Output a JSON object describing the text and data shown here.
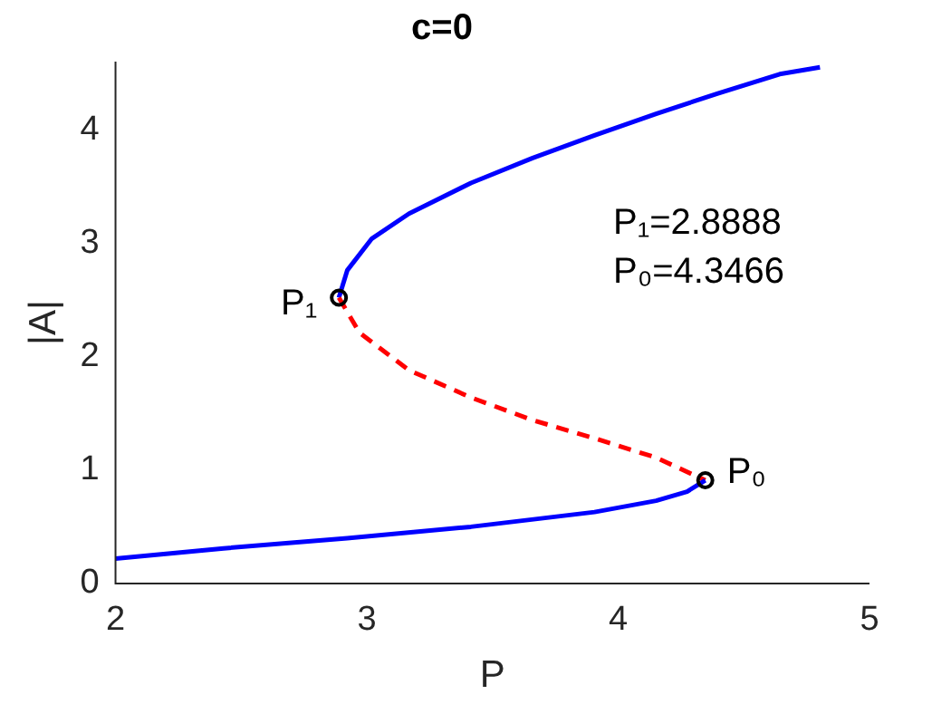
{
  "chart_data": {
    "type": "line",
    "title": "c=0",
    "xlabel": "P",
    "ylabel": "|A|",
    "xlim": [
      2,
      5
    ],
    "xticks": [
      2,
      3,
      4,
      5
    ],
    "ylim": [
      0,
      4.6
    ],
    "yticks": [
      0,
      1,
      2,
      3,
      4
    ],
    "grid": false,
    "legend": false,
    "series": [
      {
        "type": "line",
        "color": "#0000ff",
        "line_style": "solid",
        "marker": "none",
        "x": [
          2.0,
          2.43,
          2.922,
          3.414,
          3.906,
          4.151,
          4.274,
          4.3466
        ],
        "values": [
          0.22,
          0.31,
          0.4,
          0.5,
          0.63,
          0.73,
          0.81,
          0.91
        ]
      },
      {
        "type": "line",
        "color": "#ff0000",
        "line_style": "dashed",
        "marker": "none",
        "x": [
          2.8888,
          2.971,
          3.168,
          3.414,
          3.66,
          3.906,
          4.151,
          4.3466
        ],
        "values": [
          2.52,
          2.21,
          1.88,
          1.64,
          1.44,
          1.28,
          1.11,
          0.91
        ]
      },
      {
        "type": "line",
        "color": "#0000ff",
        "line_style": "solid",
        "marker": "none",
        "x": [
          2.8888,
          2.922,
          3.02,
          3.168,
          3.414,
          3.66,
          3.906,
          4.151,
          4.397,
          4.643,
          4.803
        ],
        "values": [
          2.52,
          2.76,
          3.04,
          3.26,
          3.53,
          3.75,
          3.95,
          4.14,
          4.32,
          4.49,
          4.55
        ]
      },
      {
        "type": "scatter",
        "color": "#000000",
        "marker": "circle",
        "x": [
          2.8888,
          4.3466
        ],
        "values": [
          2.52,
          0.91
        ]
      }
    ],
    "annotations": [
      {
        "text": "P₁",
        "x": 2.8888,
        "y": 2.52
      },
      {
        "text": "P₀",
        "x": 4.3466,
        "y": 0.91
      },
      "P₁=2.8888",
      "P₀=4.3466"
    ]
  }
}
